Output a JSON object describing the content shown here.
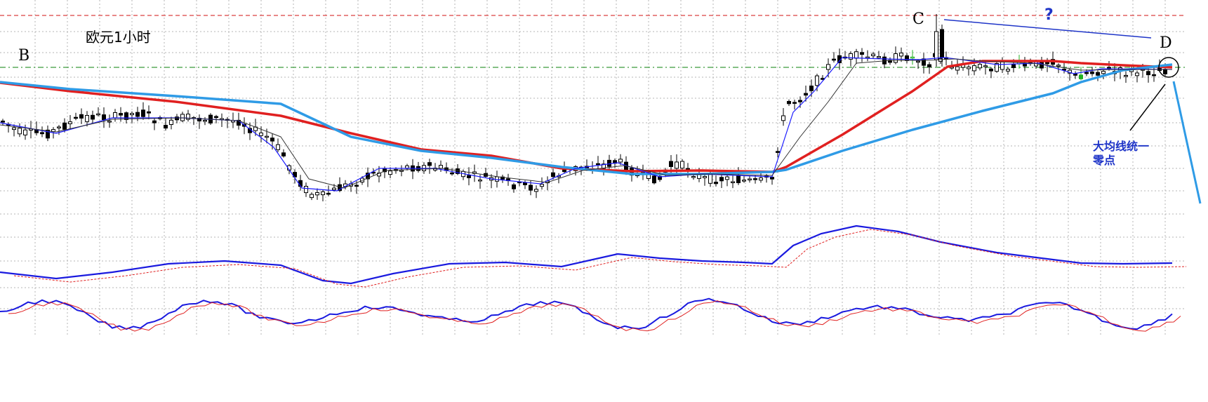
{
  "chart_data": {
    "type": "candlestick",
    "title": "欧元1小时",
    "point_labels": {
      "B": "B",
      "C": "C",
      "D": "D"
    },
    "question_mark": "?",
    "annotation": {
      "line1": "大均线统一",
      "line2": "零点"
    },
    "grid": true,
    "colors": {
      "grid": "#b4b4b4",
      "up_candle": "#000000",
      "down_candle": "#000000",
      "ma_red": "#e02020",
      "ma_blue": "#2f9be6",
      "ma_fast": "#1a1aff",
      "ma_slow": "#333333",
      "resistance_line": "#d94040",
      "support_line": "#3a9a3a",
      "osc_main": "#1a1adf",
      "osc_signal": "#e02020",
      "trendline": "#1f35c8",
      "projection": "#2f9be6",
      "annotation_text": "#1f35c8"
    }
  }
}
